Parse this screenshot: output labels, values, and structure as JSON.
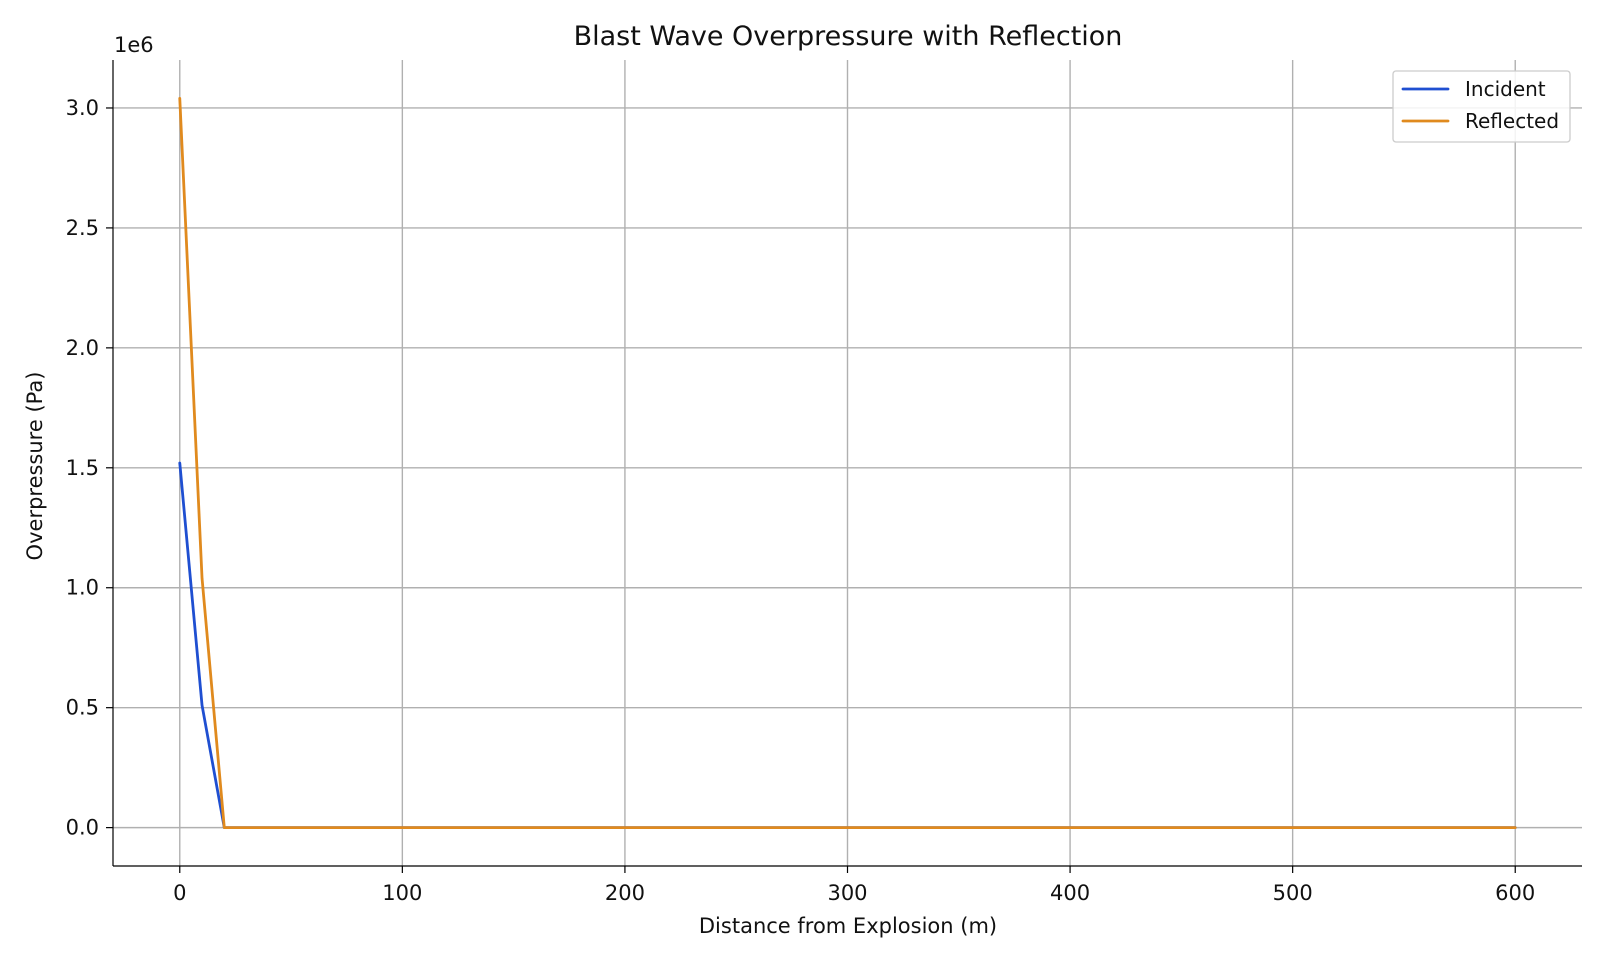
{
  "chart_data": {
    "type": "line",
    "title": "Blast Wave Overpressure with Reflection",
    "xlabel": "Distance from Explosion (m)",
    "ylabel": "Overpressure (Pa)",
    "y_offset_text": "1e6",
    "y_scale_factor": 1000000,
    "xlim": [
      -30,
      630
    ],
    "ylim": [
      -160000,
      3200000
    ],
    "x_ticks": [
      0,
      100,
      200,
      300,
      400,
      500,
      600
    ],
    "x_tick_labels": [
      "0",
      "100",
      "200",
      "300",
      "400",
      "500",
      "600"
    ],
    "y_ticks": [
      0,
      500000,
      1000000,
      1500000,
      2000000,
      2500000,
      3000000
    ],
    "y_tick_labels": [
      "0.0",
      "0.5",
      "1.0",
      "1.5",
      "2.0",
      "2.5",
      "3.0"
    ],
    "grid": true,
    "legend_position": "top-right",
    "series": [
      {
        "name": "Incident",
        "color": "#1f4fd1",
        "x": [
          0,
          10,
          20,
          30,
          600
        ],
        "y": [
          1520000,
          510000,
          0,
          0,
          0
        ]
      },
      {
        "name": "Reflected",
        "color": "#e08a1e",
        "x": [
          0,
          10,
          20,
          30,
          600
        ],
        "y": [
          3040000,
          1040000,
          0,
          0,
          0
        ]
      }
    ]
  }
}
